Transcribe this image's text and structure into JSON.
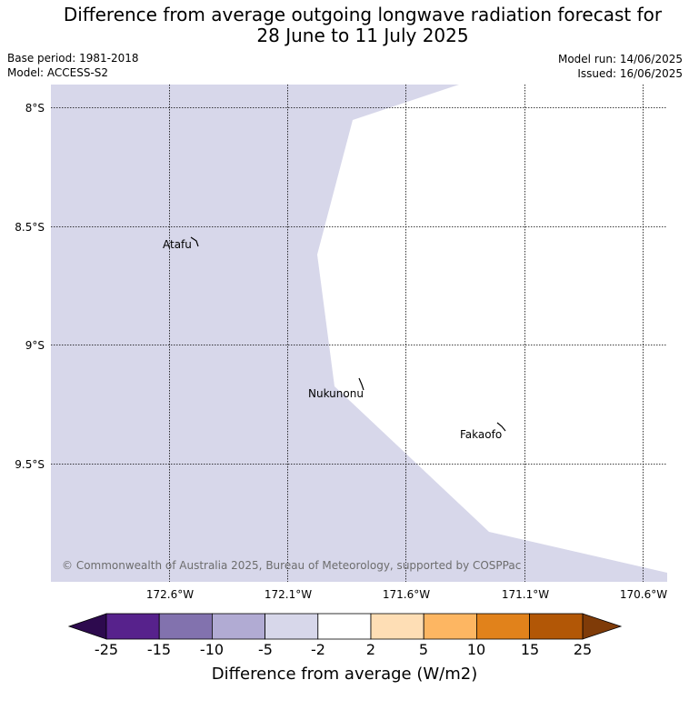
{
  "title_line1": "Difference from average outgoing longwave radiation forecast for",
  "title_line2": "28 June to 11 July 2025",
  "base_period": "Base period: 1981-2018",
  "model": "Model: ACCESS-S2",
  "model_run": "Model run: 14/06/2025",
  "issued": "Issued: 16/06/2025",
  "copyright": "© Commonwealth of Australia 2025, Bureau of Meteorology, supported by COSPPac",
  "lat_labels": [
    "8°S",
    "8.5°S",
    "9°S",
    "9.5°S"
  ],
  "lon_labels": [
    "172.6°W",
    "172.1°W",
    "171.6°W",
    "171.1°W",
    "170.6°W"
  ],
  "places": [
    "Atafu",
    "Nukunonu",
    "Fakaofo"
  ],
  "colorbar": {
    "ticks": [
      "-25",
      "-15",
      "-10",
      "-5",
      "-2",
      "2",
      "5",
      "10",
      "15",
      "25"
    ],
    "colors": [
      "#2d0a4e",
      "#57228c",
      "#8272ae",
      "#b1abd3",
      "#d7d7ea",
      "#ffffff",
      "#fedeb5",
      "#fdb662",
      "#e1821b",
      "#b25706",
      "#7f3b08"
    ],
    "label": "Difference from average (W/m2)"
  }
}
